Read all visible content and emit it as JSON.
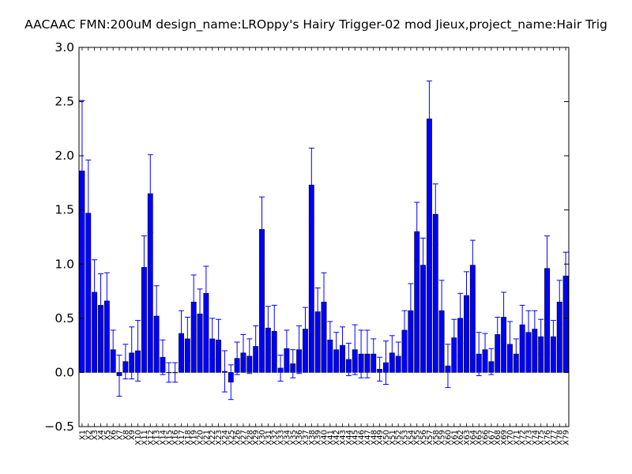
{
  "chart_data": {
    "type": "bar",
    "title": "AACAAC  FMN:200uM  design_name:LROppy's Hairy Trigger-02 mod Jieux,project_name:Hair Trig",
    "xlabel": "",
    "ylabel": "",
    "ylim": [
      -0.5,
      3.0
    ],
    "yticks": [
      "−0.5",
      "0.0",
      "0.5",
      "1.0",
      "1.5",
      "2.0",
      "2.5",
      "3.0"
    ],
    "grid": false,
    "bar_color": "#0000ff",
    "error_color": "#0000ff",
    "categories": [
      "X1",
      "X2",
      "X3",
      "X4",
      "X5",
      "X6",
      "X7",
      "X8",
      "X9",
      "X10",
      "X11",
      "X12",
      "X13",
      "X14",
      "X15",
      "X16",
      "X17",
      "X18",
      "X19",
      "X20",
      "X21",
      "X22",
      "X23",
      "X24",
      "X25",
      "X26",
      "X27",
      "X28",
      "X29",
      "X30",
      "X31",
      "X32",
      "X33",
      "X34",
      "X35",
      "X36",
      "X37",
      "X38",
      "X39",
      "X40",
      "X41",
      "X42",
      "X43",
      "X44",
      "X45",
      "X46",
      "X47",
      "X48",
      "X49",
      "X50",
      "X51",
      "X52",
      "X53",
      "X54",
      "X55",
      "X56",
      "X57",
      "X58",
      "X59",
      "X60",
      "X61",
      "X62",
      "X63",
      "X64",
      "X65",
      "X66",
      "X67",
      "X68",
      "X69",
      "X70",
      "X71",
      "X72",
      "X73",
      "X74",
      "X75",
      "X76",
      "X77",
      "X78",
      "X79"
    ],
    "values": [
      1.86,
      1.47,
      0.74,
      0.62,
      0.66,
      0.21,
      -0.03,
      0.1,
      0.18,
      0.2,
      0.97,
      1.65,
      0.52,
      0.14,
      0.0,
      0.0,
      0.36,
      0.31,
      0.65,
      0.54,
      0.73,
      0.31,
      0.3,
      0.01,
      -0.09,
      0.13,
      0.18,
      0.15,
      0.24,
      1.32,
      0.41,
      0.38,
      0.04,
      0.22,
      0.08,
      0.21,
      0.4,
      1.73,
      0.56,
      0.65,
      0.3,
      0.21,
      0.25,
      0.12,
      0.21,
      0.17,
      0.17,
      0.17,
      0.03,
      0.09,
      0.18,
      0.15,
      0.39,
      0.57,
      1.3,
      0.99,
      2.34,
      1.46,
      0.57,
      0.06,
      0.32,
      0.5,
      0.71,
      0.99,
      0.17,
      0.21,
      0.1,
      0.35,
      0.51,
      0.26,
      0.17,
      0.44,
      0.37,
      0.4,
      0.33,
      0.96,
      0.33,
      0.65,
      0.89
    ],
    "errors": [
      0.65,
      0.49,
      0.3,
      0.29,
      0.26,
      0.18,
      0.19,
      0.16,
      0.24,
      0.28,
      0.29,
      0.36,
      0.28,
      0.16,
      0.09,
      0.09,
      0.21,
      0.2,
      0.25,
      0.23,
      0.25,
      0.19,
      0.19,
      0.19,
      0.16,
      0.15,
      0.17,
      0.16,
      0.19,
      0.3,
      0.2,
      0.24,
      0.12,
      0.17,
      0.13,
      0.22,
      0.2,
      0.34,
      0.22,
      0.27,
      0.17,
      0.16,
      0.17,
      0.15,
      0.23,
      0.22,
      0.22,
      0.14,
      0.11,
      0.2,
      0.16,
      0.13,
      0.18,
      0.25,
      0.27,
      0.25,
      0.35,
      0.28,
      0.28,
      0.2,
      0.17,
      0.23,
      0.22,
      0.23,
      0.2,
      0.15,
      0.12,
      0.16,
      0.23,
      0.21,
      0.14,
      0.18,
      0.2,
      0.17,
      0.16,
      0.3,
      0.15,
      0.2,
      0.22
    ]
  }
}
